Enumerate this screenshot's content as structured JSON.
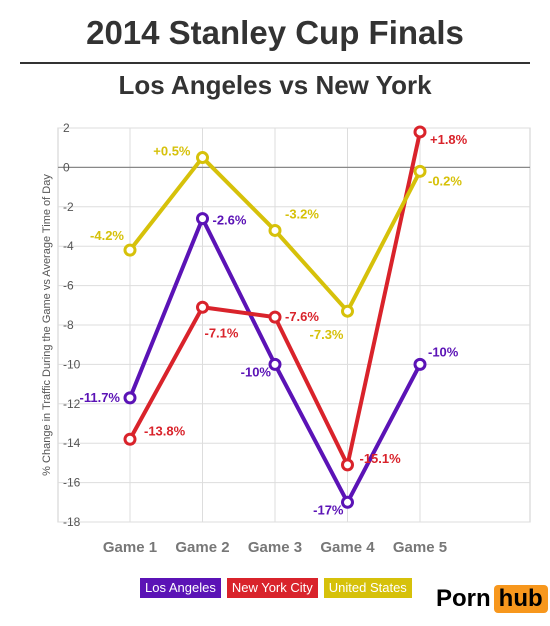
{
  "header": {
    "title": "2014 Stanley Cup Finals",
    "subtitle": "Los Angeles vs New York"
  },
  "chart_data": {
    "type": "line",
    "categories": [
      "Game 1",
      "Game 2",
      "Game 3",
      "Game 4",
      "Game 5"
    ],
    "ylabel": "% Change in Traffic During the Game vs Average Time of Day",
    "xlabel": "",
    "ylim": [
      -18,
      2
    ],
    "yticks": [
      2,
      0,
      -2,
      -4,
      -6,
      -8,
      -10,
      -12,
      -14,
      -16,
      -18
    ],
    "grid": true,
    "legend": "bottom",
    "series": [
      {
        "name": "Los Angeles",
        "color": "#5b13b6",
        "values": [
          -11.7,
          -2.6,
          -10,
          -17,
          -10
        ],
        "labels": [
          "-11.7%",
          "-2.6%",
          "-10%",
          "-17%",
          "-10%"
        ]
      },
      {
        "name": "New York City",
        "color": "#d9232b",
        "values": [
          -13.8,
          -7.1,
          -7.6,
          -15.1,
          1.8
        ],
        "labels": [
          "-13.8%",
          "-7.1%",
          "-7.6%",
          "-15.1%",
          "+1.8%"
        ]
      },
      {
        "name": "United States",
        "color": "#d6c10a",
        "values": [
          -4.2,
          0.5,
          -3.2,
          -7.3,
          -0.2
        ],
        "labels": [
          "-4.2%",
          "+0.5%",
          "-3.2%",
          "-7.3%",
          "-0.2%"
        ]
      }
    ]
  },
  "logo": {
    "part1": "Porn",
    "part2": "hub",
    "accent": "#f7971d"
  }
}
